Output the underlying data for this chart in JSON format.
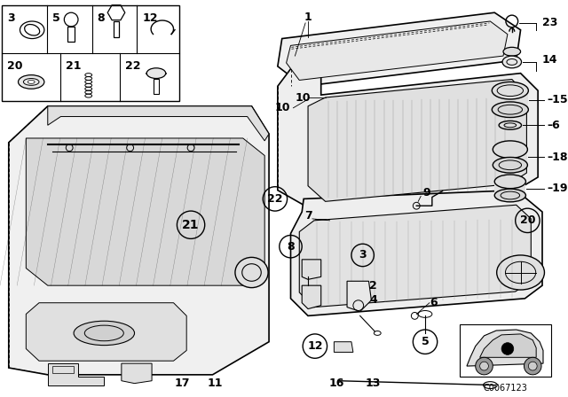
{
  "bg_color": "#ffffff",
  "line_color": "#000000",
  "diagram_id": "C0067123",
  "figsize": [
    6.4,
    4.48
  ],
  "dpi": 100
}
